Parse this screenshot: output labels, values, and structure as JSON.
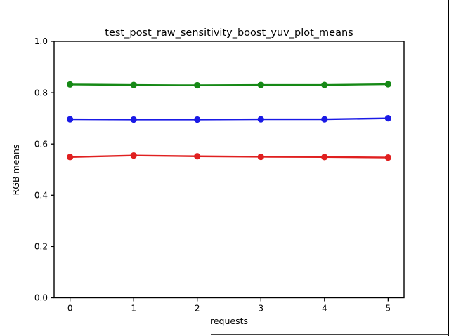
{
  "window": {
    "background": "#ffffff",
    "right_edge_color": "#000000",
    "bottom_edge_color": "#222222"
  },
  "chart_data": {
    "type": "line",
    "title": "test_post_raw_sensitivity_boost_yuv_plot_means",
    "xlabel": "requests",
    "ylabel": "RGB means",
    "x": [
      0,
      1,
      2,
      3,
      4,
      5
    ],
    "xticks": [
      "0",
      "1",
      "2",
      "3",
      "4",
      "5"
    ],
    "yticks": [
      "0.0",
      "0.2",
      "0.4",
      "0.6",
      "0.8",
      "1.0"
    ],
    "xlim": [
      -0.25,
      5.25
    ],
    "ylim": [
      0.0,
      1.0
    ],
    "grid": false,
    "legend_position": "none",
    "marker": "circle",
    "series": [
      {
        "name": "green",
        "color": "#168916",
        "values": [
          0.832,
          0.83,
          0.829,
          0.83,
          0.83,
          0.833
        ]
      },
      {
        "name": "blue",
        "color": "#1a1ae6",
        "values": [
          0.696,
          0.695,
          0.695,
          0.696,
          0.696,
          0.7
        ]
      },
      {
        "name": "red",
        "color": "#e02020",
        "values": [
          0.549,
          0.555,
          0.552,
          0.55,
          0.549,
          0.547
        ]
      }
    ]
  }
}
